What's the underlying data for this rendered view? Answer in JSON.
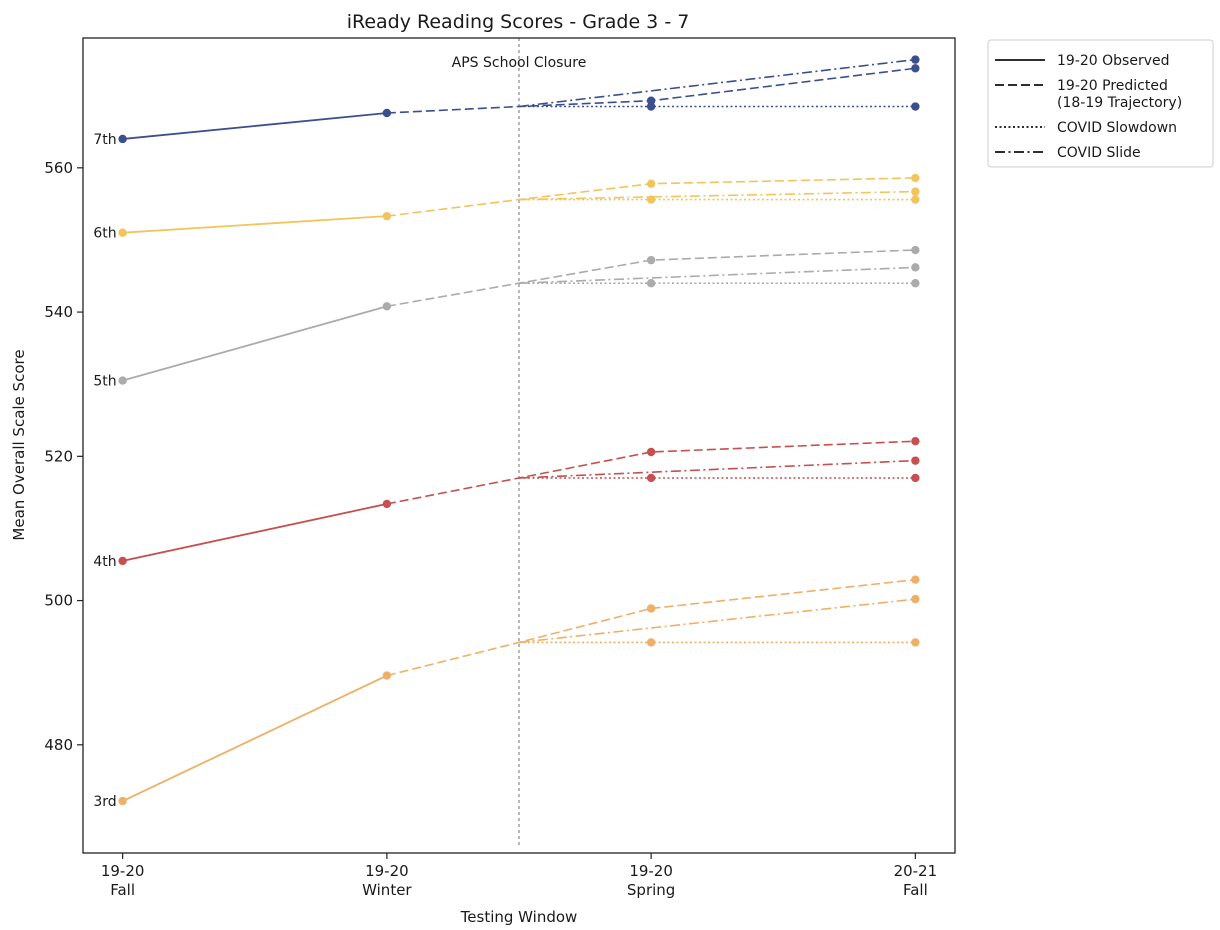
{
  "chart_data": {
    "type": "line",
    "title": "iReady Reading Scores - Grade 3 - 7",
    "xlabel": "Testing Window",
    "ylabel": "Mean Overall Scale Score",
    "x_categories": [
      {
        "line1": "19-20",
        "line2": "Fall",
        "x": 0
      },
      {
        "line1": "19-20",
        "line2": "Winter",
        "x": 1
      },
      {
        "line1": "19-20",
        "line2": "Spring",
        "x": 2
      },
      {
        "line1": "20-21",
        "line2": "Fall",
        "x": 3
      }
    ],
    "xlim": [
      -0.15,
      3.15
    ],
    "ylim": [
      465,
      578
    ],
    "yticks": [
      480,
      500,
      520,
      540,
      560
    ],
    "grid": false,
    "legend_position": "outside top-right",
    "closure": {
      "x": 1.5,
      "label": "APS School Closure"
    },
    "legend": [
      {
        "label": "19-20 Observed",
        "style": "solid"
      },
      {
        "label": "19-20 Predicted\n(18-19 Trajectory)",
        "style": "dashed"
      },
      {
        "label": "COVID Slowdown",
        "style": "dotted"
      },
      {
        "label": "COVID Slide",
        "style": "dashdot"
      }
    ],
    "series": [
      {
        "name": "7th",
        "color": "#3b4f8f",
        "observed": [
          [
            0,
            564
          ],
          [
            1,
            567.6
          ]
        ],
        "predicted": [
          [
            1,
            567.6
          ],
          [
            1.5,
            568.5
          ],
          [
            2,
            569.3
          ],
          [
            3,
            573.8
          ]
        ],
        "slowdown": [
          [
            1.5,
            568.5
          ],
          [
            2,
            568.5
          ],
          [
            3,
            568.5
          ]
        ],
        "slide": [
          [
            1.5,
            568.5
          ],
          [
            3,
            575
          ]
        ]
      },
      {
        "name": "6th",
        "color": "#f2c45c",
        "observed": [
          [
            0,
            551
          ],
          [
            1,
            553.3
          ]
        ],
        "predicted": [
          [
            1,
            553.3
          ],
          [
            1.5,
            555.6
          ],
          [
            2,
            557.8
          ],
          [
            3,
            558.6
          ]
        ],
        "slowdown": [
          [
            1.5,
            555.6
          ],
          [
            2,
            555.6
          ],
          [
            3,
            555.6
          ]
        ],
        "slide": [
          [
            1.5,
            555.6
          ],
          [
            3,
            556.7
          ]
        ]
      },
      {
        "name": "5th",
        "color": "#ababab",
        "observed": [
          [
            0,
            530.5
          ],
          [
            1,
            540.8
          ]
        ],
        "predicted": [
          [
            1,
            540.8
          ],
          [
            1.5,
            544
          ],
          [
            2,
            547.2
          ],
          [
            3,
            548.6
          ]
        ],
        "slowdown": [
          [
            1.5,
            544
          ],
          [
            2,
            544
          ],
          [
            3,
            544
          ]
        ],
        "slide": [
          [
            1.5,
            544
          ],
          [
            3,
            546.2
          ]
        ]
      },
      {
        "name": "4th",
        "color": "#c5504f",
        "observed": [
          [
            0,
            505.5
          ],
          [
            1,
            513.4
          ]
        ],
        "predicted": [
          [
            1,
            513.4
          ],
          [
            1.5,
            517
          ],
          [
            2,
            520.6
          ],
          [
            3,
            522.1
          ]
        ],
        "slowdown": [
          [
            1.5,
            517
          ],
          [
            2,
            517
          ],
          [
            3,
            517
          ]
        ],
        "slide": [
          [
            1.5,
            517
          ],
          [
            3,
            519.4
          ]
        ]
      },
      {
        "name": "3rd",
        "color": "#eeb066",
        "observed": [
          [
            0,
            472.2
          ],
          [
            1,
            489.6
          ]
        ],
        "predicted": [
          [
            1,
            489.6
          ],
          [
            1.5,
            494.2
          ],
          [
            2,
            498.9
          ],
          [
            3,
            502.9
          ]
        ],
        "slowdown": [
          [
            1.5,
            494.2
          ],
          [
            2,
            494.2
          ],
          [
            3,
            494.2
          ]
        ],
        "slide": [
          [
            1.5,
            494.2
          ],
          [
            3,
            500.2
          ]
        ]
      }
    ]
  }
}
